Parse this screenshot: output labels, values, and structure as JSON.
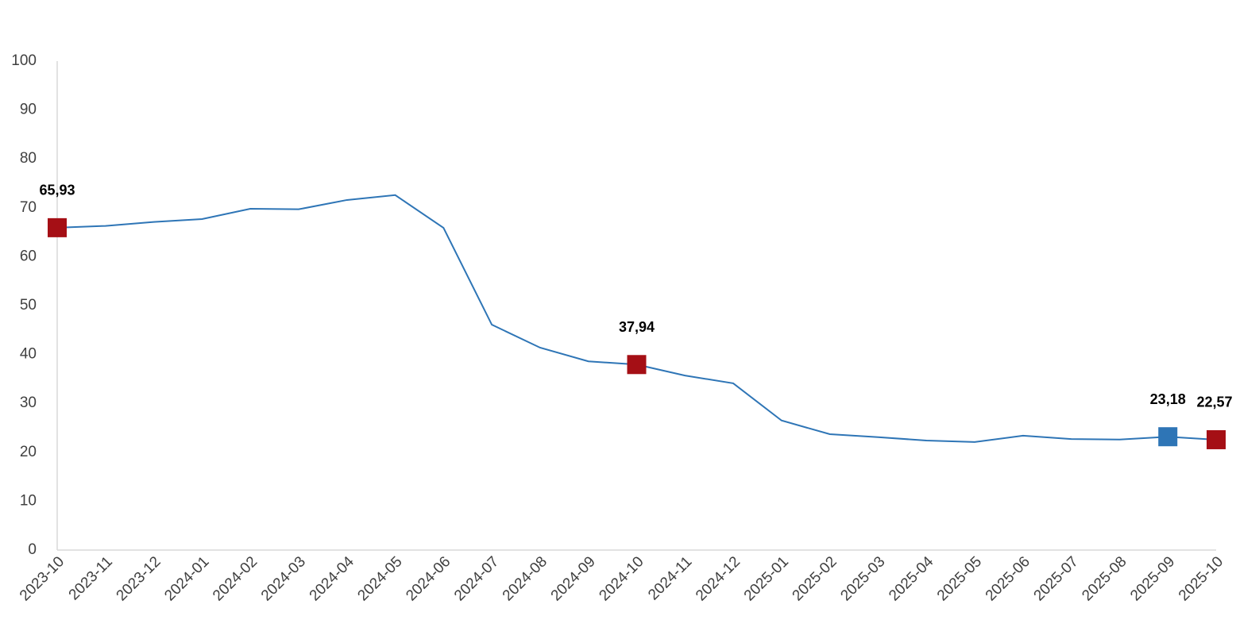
{
  "chart_data": {
    "type": "line",
    "categories": [
      "2023-10",
      "2023-11",
      "2023-12",
      "2024-01",
      "2024-02",
      "2024-03",
      "2024-04",
      "2024-05",
      "2024-06",
      "2024-07",
      "2024-08",
      "2024-09",
      "2024-10",
      "2024-11",
      "2024-12",
      "2025-01",
      "2025-02",
      "2025-03",
      "2025-04",
      "2025-05",
      "2025-06",
      "2025-07",
      "2025-08",
      "2025-09",
      "2025-10"
    ],
    "series": [
      {
        "color": "#2e75b6",
        "values": [
          65.93,
          66.3,
          67.1,
          67.7,
          69.8,
          69.7,
          71.6,
          72.6,
          65.9,
          46.1,
          41.4,
          38.6,
          37.94,
          35.7,
          34.1,
          26.5,
          23.7,
          23.1,
          22.4,
          22.1,
          23.4,
          22.7,
          22.6,
          23.18,
          22.57
        ],
        "value_labels": [
          "65,93",
          null,
          null,
          null,
          null,
          null,
          null,
          null,
          null,
          null,
          null,
          null,
          "37,94",
          null,
          null,
          null,
          null,
          null,
          null,
          null,
          null,
          null,
          null,
          "23,18",
          "22,57"
        ],
        "marker_colors": [
          "#a50f15",
          null,
          null,
          null,
          null,
          null,
          null,
          null,
          null,
          null,
          null,
          null,
          "#a50f15",
          null,
          null,
          null,
          null,
          null,
          null,
          null,
          null,
          null,
          null,
          "#2e75b6",
          "#a50f15"
        ]
      }
    ],
    "ylim": [
      0,
      100
    ],
    "yticks": [
      0,
      10,
      20,
      30,
      40,
      50,
      60,
      70,
      80,
      90,
      100
    ],
    "grid": false
  }
}
